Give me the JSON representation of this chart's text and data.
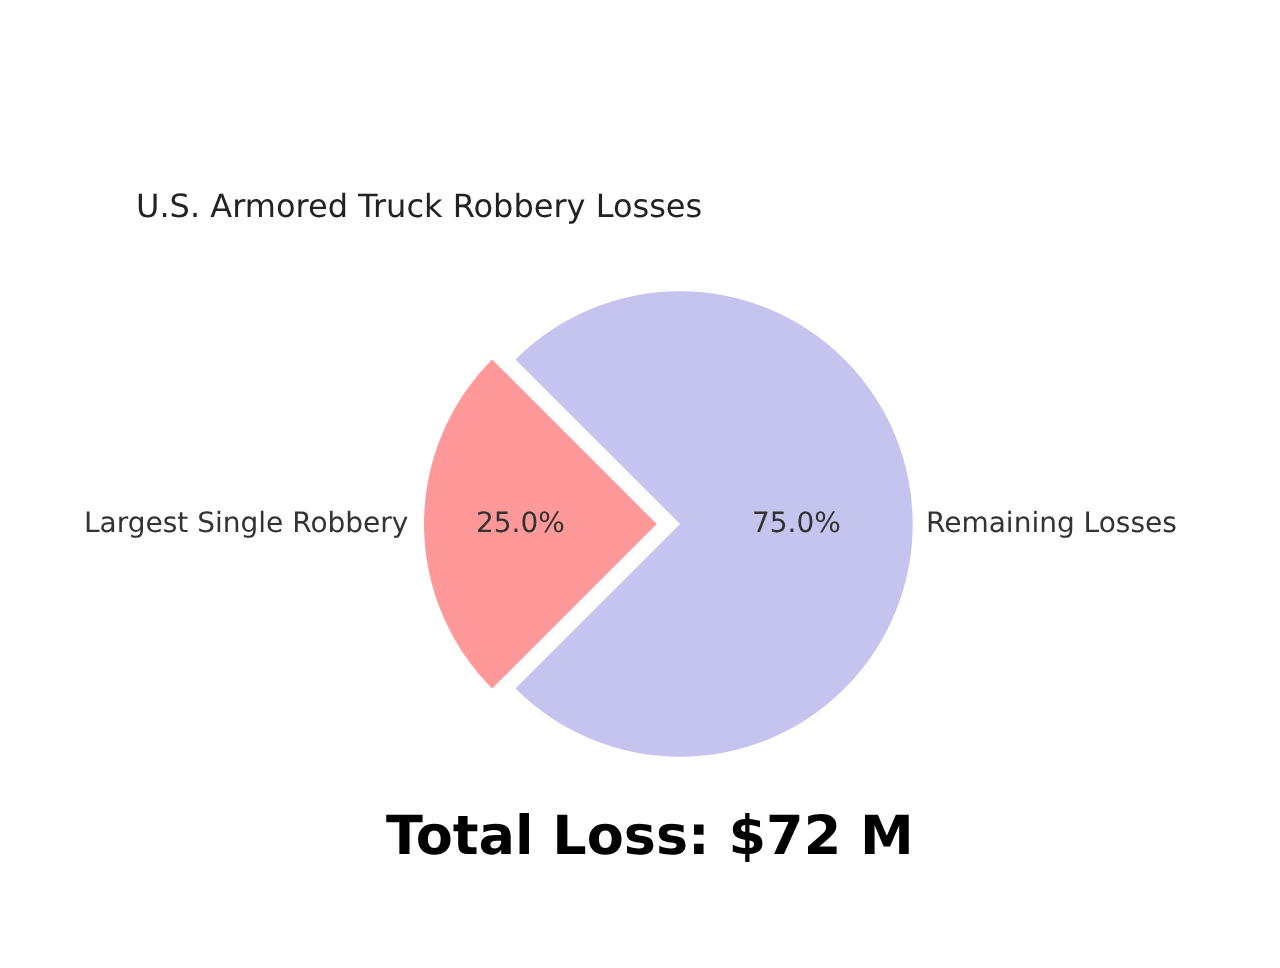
{
  "chart_data": {
    "type": "pie",
    "title": "U.S. Armored Truck Robbery Losses",
    "categories": [
      "Largest Single Robbery",
      "Remaining Losses"
    ],
    "values": [
      25,
      75
    ],
    "colors": [
      "#ff9999",
      "#c4c4ee"
    ],
    "value_labels": [
      "25.0%",
      "75.0%"
    ],
    "annotations": [
      "Total Loss: $72 M"
    ]
  }
}
